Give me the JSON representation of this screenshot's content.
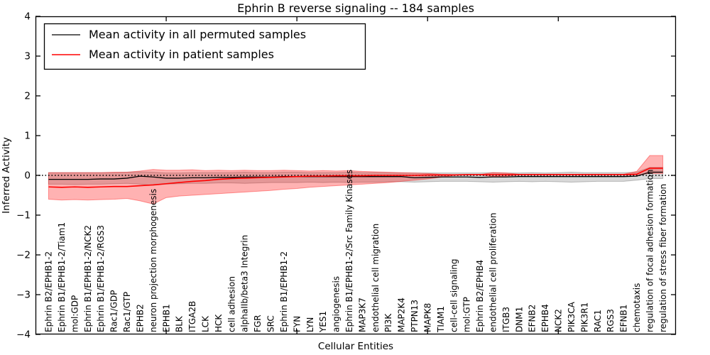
{
  "figure": {
    "background": "#ffffff",
    "frame_color": "#000000"
  },
  "legend": {
    "entries": [
      {
        "label": "Mean activity in all permuted samples",
        "color": "#000000"
      },
      {
        "label": "Mean activity in patient samples",
        "color": "#ff0000"
      }
    ]
  },
  "chart_data": {
    "type": "line",
    "title": "Ephrin B reverse signaling -- 184 samples",
    "xlabel": "Cellular Entities",
    "ylabel": "Inferred Activity",
    "ylim": [
      -4,
      4
    ],
    "yticks": [
      -4,
      -3,
      -2,
      -1,
      0,
      1,
      2,
      3,
      4
    ],
    "ytick_labels": [
      "−4",
      "−3",
      "−2",
      "−1",
      "0",
      "1",
      "2",
      "3",
      "4"
    ],
    "xlim": [
      0,
      49
    ],
    "xticks": [
      10,
      20,
      30,
      40
    ],
    "grid": false,
    "legend_position": "upper left",
    "zero_line": {
      "y": 0,
      "style": "dotted",
      "color": "#000000"
    },
    "categories": [
      "Ephrin B2/EPHB1-2",
      "Ephrin B1/EPHB1-2/Tiam1",
      "mol:GDP",
      "Ephrin B1/EPHB1-2/NCK2",
      "Ephrin B1/EPHB1-2/RGS3",
      "Rac1/GDP",
      "Rac1/GTP",
      "EPHB2",
      "neuron projection morphogenesis",
      "EPHB1",
      "BLK",
      "ITGA2B",
      "LCK",
      "HCK",
      "cell adhesion",
      "alphaIIb/beta3 Integrin",
      "FGR",
      "SRC",
      "Ephrin B1/EPHB1-2",
      "FYN",
      "LYN",
      "YES1",
      "angiogenesis",
      "Ephrin B1/EPHB1-2/Src Family Kinases",
      "MAP3K7",
      "endothelial cell migration",
      "PI3K",
      "MAP2K4",
      "PTPN13",
      "MAPK8",
      "TIAM1",
      "cell-cell signaling",
      "mol:GTP",
      "Ephrin B2/EPHB4",
      "endothelial cell proliferation",
      "ITGB3",
      "DNM1",
      "EFNB2",
      "EPHB4",
      "NCK2",
      "PIK3CA",
      "PIK3R1",
      "RAC1",
      "RGS3",
      "EFNB1",
      "chemotaxis",
      "regulation of focal adhesion formation",
      "regulation of stress fiber formation"
    ],
    "series": [
      {
        "name": "Mean activity in all permuted samples",
        "color": "#000000",
        "width": 1.3,
        "values": [
          -0.1,
          -0.1,
          -0.1,
          -0.1,
          -0.09,
          -0.09,
          -0.07,
          -0.02,
          -0.04,
          -0.07,
          -0.07,
          -0.06,
          -0.06,
          -0.05,
          -0.05,
          -0.04,
          -0.04,
          -0.04,
          -0.03,
          -0.03,
          -0.03,
          -0.03,
          -0.03,
          -0.03,
          -0.03,
          -0.03,
          -0.03,
          -0.03,
          -0.06,
          -0.05,
          -0.04,
          -0.04,
          -0.04,
          -0.05,
          -0.04,
          -0.04,
          -0.03,
          -0.03,
          -0.03,
          -0.03,
          -0.03,
          -0.03,
          -0.03,
          -0.03,
          -0.03,
          -0.02,
          0.08,
          0.08
        ]
      },
      {
        "name": "Mean activity in patient samples",
        "color": "#ff0000",
        "width": 1.6,
        "values": [
          -0.29,
          -0.3,
          -0.29,
          -0.3,
          -0.29,
          -0.28,
          -0.28,
          -0.26,
          -0.24,
          -0.21,
          -0.18,
          -0.15,
          -0.13,
          -0.1,
          -0.08,
          -0.07,
          -0.06,
          -0.05,
          -0.04,
          -0.03,
          -0.02,
          -0.02,
          -0.01,
          -0.01,
          -0.01,
          0.0,
          0.0,
          0.0,
          0.0,
          0.01,
          0.01,
          0.01,
          0.02,
          0.02,
          0.02,
          0.02,
          0.02,
          0.02,
          0.02,
          0.02,
          0.02,
          0.02,
          0.02,
          0.02,
          0.02,
          0.03,
          0.18,
          0.18
        ]
      }
    ],
    "bands": [
      {
        "name": "permuted-range",
        "color": "#000000",
        "opacity": 0.15,
        "upper": [
          0.07,
          0.07,
          0.07,
          0.07,
          0.07,
          0.07,
          0.08,
          0.09,
          0.08,
          0.06,
          0.06,
          0.07,
          0.07,
          0.07,
          0.07,
          0.08,
          0.07,
          0.07,
          0.08,
          0.08,
          0.07,
          0.07,
          0.07,
          0.08,
          0.07,
          0.07,
          0.06,
          0.06,
          0.06,
          0.06,
          0.06,
          0.06,
          0.06,
          0.06,
          0.07,
          0.06,
          0.06,
          0.07,
          0.06,
          0.07,
          0.08,
          0.07,
          0.07,
          0.07,
          0.07,
          0.08,
          0.2,
          0.2
        ],
        "lower": [
          -0.22,
          -0.22,
          -0.23,
          -0.22,
          -0.22,
          -0.21,
          -0.2,
          -0.22,
          -0.25,
          -0.22,
          -0.21,
          -0.2,
          -0.2,
          -0.19,
          -0.19,
          -0.2,
          -0.19,
          -0.18,
          -0.18,
          -0.18,
          -0.17,
          -0.18,
          -0.17,
          -0.18,
          -0.17,
          -0.17,
          -0.16,
          -0.16,
          -0.17,
          -0.16,
          -0.15,
          -0.15,
          -0.15,
          -0.16,
          -0.17,
          -0.16,
          -0.15,
          -0.16,
          -0.15,
          -0.16,
          -0.17,
          -0.16,
          -0.15,
          -0.15,
          -0.15,
          -0.12,
          -0.08,
          -0.08
        ]
      },
      {
        "name": "patient-range",
        "color": "#ff0000",
        "opacity": 0.3,
        "upper": [
          0.07,
          0.07,
          0.07,
          0.07,
          0.07,
          0.08,
          0.08,
          0.11,
          0.15,
          0.13,
          0.13,
          0.14,
          0.12,
          0.13,
          0.12,
          0.13,
          0.12,
          0.12,
          0.13,
          0.12,
          0.11,
          0.12,
          0.11,
          0.12,
          0.1,
          0.09,
          0.08,
          0.07,
          0.06,
          0.05,
          0.03,
          0.02,
          0.02,
          0.02,
          0.07,
          0.06,
          0.03,
          0.03,
          0.03,
          0.03,
          0.03,
          0.03,
          0.03,
          0.03,
          0.03,
          0.1,
          0.5,
          0.5
        ],
        "lower": [
          -0.6,
          -0.62,
          -0.61,
          -0.62,
          -0.61,
          -0.6,
          -0.58,
          -0.64,
          -0.72,
          -0.56,
          -0.52,
          -0.5,
          -0.48,
          -0.46,
          -0.44,
          -0.42,
          -0.4,
          -0.38,
          -0.35,
          -0.33,
          -0.3,
          -0.28,
          -0.26,
          -0.24,
          -0.22,
          -0.2,
          -0.18,
          -0.15,
          -0.12,
          -0.09,
          -0.05,
          0.0,
          0.01,
          0.01,
          -0.03,
          -0.02,
          0.01,
          0.01,
          0.01,
          0.01,
          0.01,
          0.01,
          0.01,
          0.01,
          0.01,
          0.01,
          0.05,
          0.05
        ]
      }
    ]
  }
}
